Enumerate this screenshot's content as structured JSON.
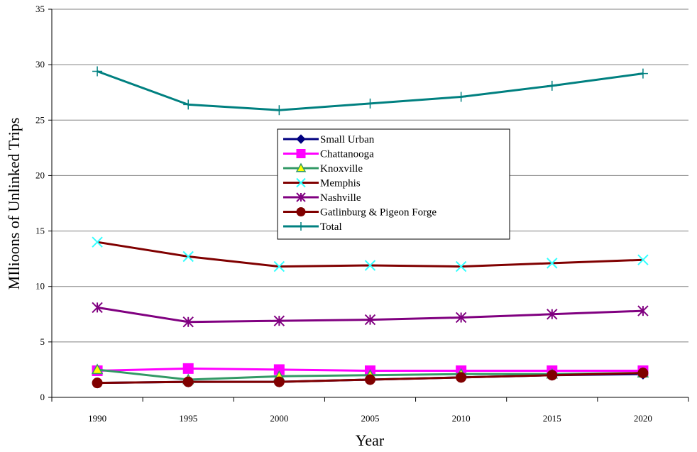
{
  "chart_data": {
    "type": "line",
    "title": "",
    "xlabel": "Year",
    "ylabel": "MIlioons of Unlinked Trips",
    "x": [
      "1990",
      "1995",
      "2000",
      "2005",
      "2010",
      "2015",
      "2020"
    ],
    "ylim": [
      0,
      35
    ],
    "yticks": [
      "0",
      "5",
      "10",
      "15",
      "20",
      "25",
      "30",
      "35"
    ],
    "grid": true,
    "legend_position": "center",
    "series": [
      {
        "name": "Small Urban",
        "color": "#000080",
        "marker": "diamond",
        "markerFill": "#000080",
        "markerStroke": "#000080",
        "values": [
          1.3,
          1.4,
          1.4,
          1.6,
          1.8,
          2.0,
          2.1
        ]
      },
      {
        "name": "Chattanooga",
        "color": "#ff00ff",
        "marker": "square",
        "markerFill": "#ff00ff",
        "markerStroke": "#ff00ff",
        "values": [
          2.4,
          2.6,
          2.5,
          2.4,
          2.4,
          2.4,
          2.4
        ]
      },
      {
        "name": "Knoxville",
        "color": "#339966",
        "marker": "triangle",
        "markerFill": "#ffff00",
        "markerStroke": "#339966",
        "values": [
          2.5,
          1.6,
          1.9,
          2.0,
          2.1,
          2.1,
          2.2
        ]
      },
      {
        "name": "Memphis",
        "color": "#800000",
        "marker": "x",
        "markerFill": "none",
        "markerStroke": "#33ffff",
        "values": [
          14.0,
          12.7,
          11.8,
          11.9,
          11.8,
          12.1,
          12.4
        ]
      },
      {
        "name": "Nashville",
        "color": "#800080",
        "marker": "star",
        "markerFill": "none",
        "markerStroke": "#800080",
        "values": [
          8.1,
          6.8,
          6.9,
          7.0,
          7.2,
          7.5,
          7.8
        ]
      },
      {
        "name": "Gatlinburg & Pigeon Forge",
        "color": "#800000",
        "marker": "circle",
        "markerFill": "#800000",
        "markerStroke": "#800000",
        "values": [
          1.3,
          1.4,
          1.4,
          1.6,
          1.8,
          2.0,
          2.2
        ]
      },
      {
        "name": "Total",
        "color": "#008080",
        "marker": "plus",
        "markerFill": "none",
        "markerStroke": "#008080",
        "values": [
          29.4,
          26.4,
          25.9,
          26.5,
          27.1,
          28.1,
          29.2
        ]
      }
    ]
  }
}
